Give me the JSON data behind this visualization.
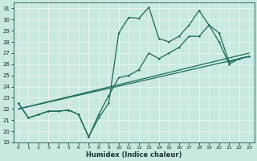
{
  "xlabel": "Humidex (Indice chaleur)",
  "xlim": [
    -0.5,
    23.5
  ],
  "ylim": [
    19,
    31.5
  ],
  "yticks": [
    19,
    20,
    21,
    22,
    23,
    24,
    25,
    26,
    27,
    28,
    29,
    30,
    31
  ],
  "xticks": [
    0,
    1,
    2,
    3,
    4,
    5,
    6,
    7,
    8,
    9,
    10,
    11,
    12,
    13,
    14,
    15,
    16,
    17,
    18,
    19,
    20,
    21,
    22,
    23
  ],
  "bg_color": "#c8e8e0",
  "grid_color": "#e8f4f0",
  "line_color": "#1a6b5a",
  "series1_x": [
    0,
    1,
    2,
    3,
    4,
    5,
    6,
    7,
    8,
    9,
    10,
    11,
    12,
    13,
    14,
    15,
    16,
    17,
    18,
    19,
    20,
    21,
    22,
    23
  ],
  "series1_y": [
    22.5,
    21.2,
    21.5,
    21.8,
    21.8,
    21.9,
    21.5,
    19.5,
    21.2,
    22.5,
    28.8,
    30.2,
    30.1,
    31.1,
    28.3,
    28.0,
    28.5,
    29.5,
    30.8,
    29.5,
    28.8,
    26.2,
    26.5,
    26.7
  ],
  "series2_x": [
    0,
    1,
    2,
    3,
    4,
    5,
    6,
    7,
    8,
    9,
    10,
    11,
    12,
    13,
    14,
    15,
    16,
    17,
    18,
    19,
    20,
    21,
    22,
    23
  ],
  "series2_y": [
    22.5,
    21.2,
    21.5,
    21.8,
    21.8,
    21.9,
    21.5,
    19.5,
    21.5,
    23.2,
    24.8,
    25.0,
    25.5,
    27.0,
    26.5,
    27.0,
    27.5,
    28.5,
    28.5,
    29.5,
    28.0,
    26.0,
    26.5,
    26.7
  ],
  "line3_x": [
    0,
    23
  ],
  "line3_y": [
    22.0,
    27.0
  ],
  "line4_x": [
    0,
    23
  ],
  "line4_y": [
    22.0,
    26.7
  ]
}
